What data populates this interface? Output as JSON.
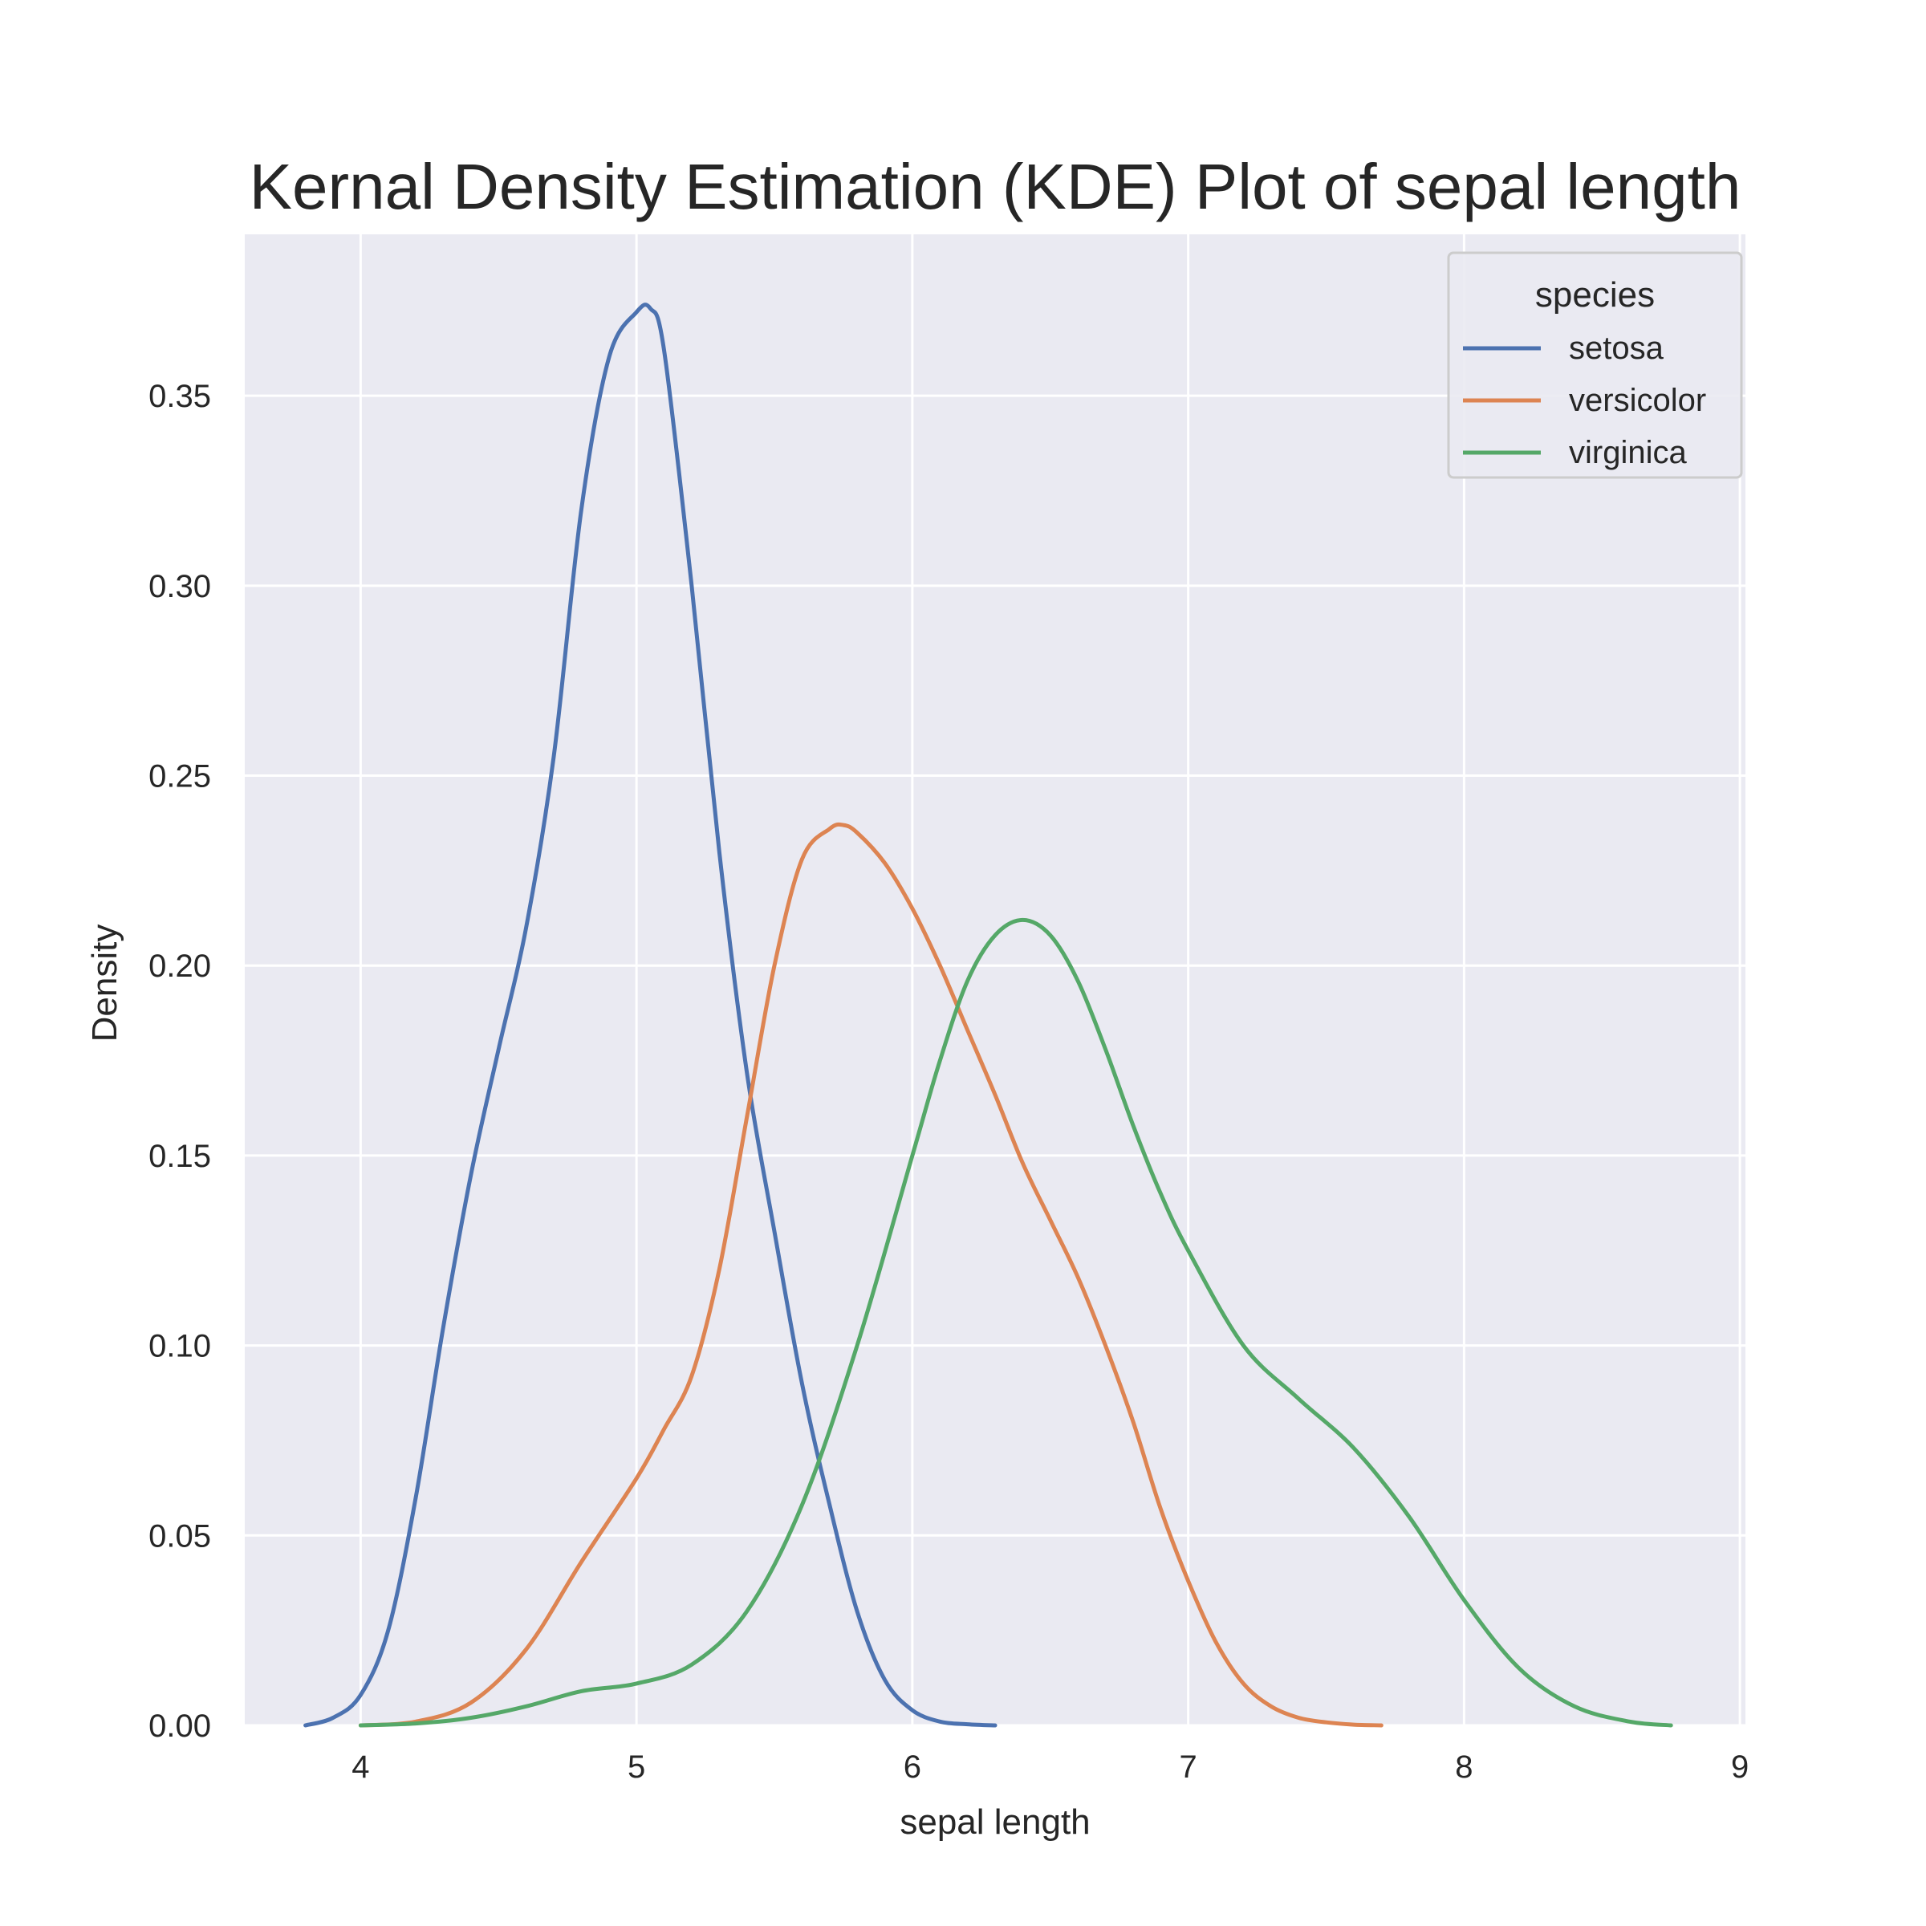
{
  "chart_data": {
    "type": "line",
    "title": "Kernal Density Estimation (KDE) Plot of sepal length",
    "xlabel": "sepal length",
    "ylabel": "Density",
    "xlim": [
      3.58,
      9.02
    ],
    "ylim": [
      0,
      0.3925
    ],
    "xticks": [
      4,
      5,
      6,
      7,
      8,
      9
    ],
    "yticks": [
      0.0,
      0.05,
      0.1,
      0.15,
      0.2,
      0.25,
      0.3,
      0.35
    ],
    "ytick_labels": [
      "0.00",
      "0.05",
      "0.10",
      "0.15",
      "0.20",
      "0.25",
      "0.30",
      "0.35"
    ],
    "xtick_labels": [
      "4",
      "5",
      "6",
      "7",
      "8",
      "9"
    ],
    "grid": true,
    "background": "#eaeaf2",
    "legend": {
      "title": "species",
      "position": "top-right"
    },
    "series": [
      {
        "name": "setosa",
        "color": "#4c72b0",
        "x": [
          3.8,
          3.9,
          4.0,
          4.1,
          4.2,
          4.3,
          4.4,
          4.5,
          4.6,
          4.7,
          4.8,
          4.9,
          5.0,
          5.05,
          5.1,
          5.2,
          5.3,
          5.4,
          5.5,
          5.6,
          5.7,
          5.8,
          5.9,
          6.0,
          6.1,
          6.2,
          6.3
        ],
        "y": [
          0.0,
          0.002,
          0.008,
          0.025,
          0.06,
          0.105,
          0.145,
          0.178,
          0.21,
          0.255,
          0.32,
          0.36,
          0.372,
          0.373,
          0.362,
          0.3,
          0.23,
          0.172,
          0.13,
          0.09,
          0.058,
          0.03,
          0.012,
          0.004,
          0.001,
          0.0003,
          0.0
        ]
      },
      {
        "name": "versicolor",
        "color": "#dd8452",
        "x": [
          4.0,
          4.2,
          4.4,
          4.6,
          4.8,
          5.0,
          5.1,
          5.2,
          5.3,
          5.4,
          5.5,
          5.6,
          5.7,
          5.75,
          5.8,
          5.9,
          6.0,
          6.1,
          6.2,
          6.3,
          6.4,
          6.5,
          6.6,
          6.7,
          6.8,
          6.9,
          7.0,
          7.1,
          7.2,
          7.3,
          7.4,
          7.5,
          7.6,
          7.7
        ],
        "y": [
          0.0,
          0.001,
          0.006,
          0.02,
          0.043,
          0.065,
          0.078,
          0.092,
          0.12,
          0.16,
          0.2,
          0.228,
          0.236,
          0.237,
          0.235,
          0.227,
          0.215,
          0.2,
          0.183,
          0.166,
          0.148,
          0.133,
          0.118,
          0.1,
          0.08,
          0.057,
          0.038,
          0.022,
          0.011,
          0.005,
          0.002,
          0.0008,
          0.0002,
          0.0
        ]
      },
      {
        "name": "virginica",
        "color": "#55a868",
        "x": [
          4.0,
          4.2,
          4.4,
          4.6,
          4.8,
          5.0,
          5.2,
          5.4,
          5.6,
          5.8,
          6.0,
          6.1,
          6.2,
          6.3,
          6.4,
          6.5,
          6.6,
          6.7,
          6.8,
          6.9,
          7.0,
          7.2,
          7.4,
          7.6,
          7.8,
          8.0,
          8.2,
          8.4,
          8.6,
          8.75
        ],
        "y": [
          0.0,
          0.0005,
          0.002,
          0.005,
          0.009,
          0.011,
          0.016,
          0.03,
          0.058,
          0.1,
          0.15,
          0.175,
          0.196,
          0.208,
          0.212,
          0.208,
          0.196,
          0.178,
          0.158,
          0.14,
          0.125,
          0.1,
          0.086,
          0.073,
          0.055,
          0.033,
          0.015,
          0.005,
          0.001,
          0.0
        ]
      }
    ]
  }
}
